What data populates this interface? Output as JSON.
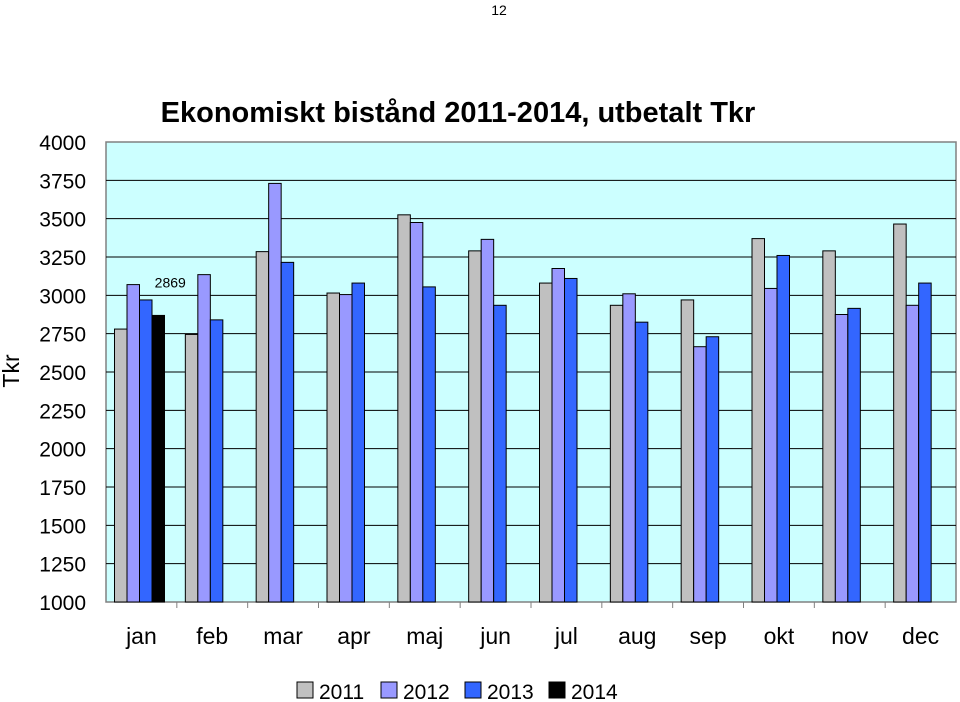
{
  "page": {
    "number": "12"
  },
  "chart_data": {
    "type": "bar",
    "title": "Ekonomiskt bistånd 2011-2014, utbetalt Tkr",
    "ylabel": "Tkr",
    "xlabel": "",
    "ylim": [
      1000,
      4000
    ],
    "yticks": [
      1000,
      1250,
      1500,
      1750,
      2000,
      2250,
      2500,
      2750,
      3000,
      3250,
      3500,
      3750,
      4000
    ],
    "categories": [
      "jan",
      "feb",
      "mar",
      "apr",
      "maj",
      "jun",
      "jul",
      "aug",
      "sep",
      "okt",
      "nov",
      "dec"
    ],
    "grid": true,
    "legend_position": "bottom",
    "plot_background": "#ccffff",
    "series": [
      {
        "name": "2011",
        "color": "#c0c0c0",
        "values": [
          2780,
          2745,
          3285,
          3015,
          3525,
          3290,
          3080,
          2935,
          2970,
          3370,
          3290,
          3465
        ]
      },
      {
        "name": "2012",
        "color": "#9999ff",
        "values": [
          3070,
          3135,
          3730,
          3005,
          3475,
          3365,
          3175,
          3010,
          2665,
          3045,
          2875,
          2935
        ]
      },
      {
        "name": "2013",
        "color": "#3366ff",
        "values": [
          2970,
          2840,
          3215,
          3080,
          3055,
          2935,
          3110,
          2825,
          2730,
          3260,
          2915,
          3080
        ]
      },
      {
        "name": "2014",
        "color": "#000000",
        "values": [
          2869,
          null,
          null,
          null,
          null,
          null,
          null,
          null,
          null,
          null,
          null,
          null
        ]
      }
    ],
    "data_labels": [
      {
        "series": "2014",
        "category": "jan",
        "text": "2869"
      }
    ]
  }
}
